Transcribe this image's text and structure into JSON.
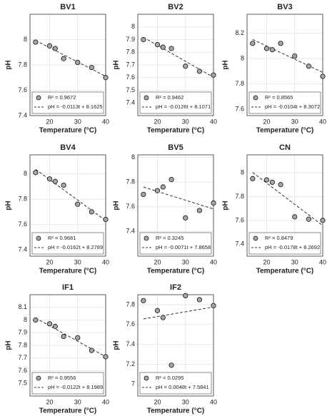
{
  "chart_data": [
    {
      "type": "scatter",
      "title": "BV1",
      "x_label": "Temperature (°C)",
      "y_label": "pH",
      "x": [
        15,
        20,
        22,
        25,
        30,
        35,
        40
      ],
      "series": [
        {
          "name": "R² = 0.9672",
          "color": "#a6a6a6",
          "values": [
            7.98,
            7.95,
            7.93,
            7.85,
            7.82,
            7.78,
            7.7
          ]
        }
      ],
      "fit": {
        "name": "pH = -0.0113t + 8.1625",
        "slope": -0.0113,
        "intercept": 8.1625
      },
      "xlim": [
        13,
        40
      ],
      "xticks": [
        20,
        30,
        40
      ],
      "ylim": [
        7.4,
        8.2
      ],
      "yticks": [
        7.4,
        7.6,
        7.8,
        8
      ],
      "grid": true,
      "legend": "lower left"
    },
    {
      "type": "scatter",
      "title": "BV2",
      "x_label": "Temperature (°C)",
      "y_label": "pH",
      "x": [
        15,
        20,
        22,
        25,
        30,
        35,
        40
      ],
      "series": [
        {
          "name": "R² = 0.9462",
          "color": "#a6a6a6",
          "values": [
            7.9,
            7.86,
            7.84,
            7.83,
            7.69,
            7.65,
            7.62
          ]
        }
      ],
      "fit": {
        "name": "pH = -0.0126t + 8.1071",
        "slope": -0.0126,
        "intercept": 8.1071
      },
      "xlim": [
        13,
        40
      ],
      "xticks": [
        20,
        30,
        40
      ],
      "ylim": [
        7.3,
        8.1
      ],
      "yticks": [
        7.4,
        7.5,
        7.6,
        7.7,
        7.8,
        7.9,
        8
      ],
      "grid": true,
      "legend": "lower left"
    },
    {
      "type": "scatter",
      "title": "BV3",
      "x_label": "Temperature (°C)",
      "y_label": "pH",
      "x": [
        15,
        20,
        22,
        25,
        30,
        35,
        40
      ],
      "series": [
        {
          "name": "R² = 0.8565",
          "color": "#a6a6a6",
          "values": [
            8.12,
            8.08,
            8.07,
            8.12,
            8.02,
            7.94,
            7.86
          ]
        }
      ],
      "fit": {
        "name": "pH = -0.0104t + 8.3072",
        "slope": -0.0104,
        "intercept": 8.3072
      },
      "xlim": [
        13,
        40
      ],
      "xticks": [
        20,
        30,
        40
      ],
      "ylim": [
        7.55,
        8.35
      ],
      "yticks": [
        7.6,
        7.8,
        8,
        8.2
      ],
      "grid": true,
      "legend": "lower left"
    },
    {
      "type": "scatter",
      "title": "BV4",
      "x_label": "Temperature (°C)",
      "y_label": "pH",
      "x": [
        15,
        20,
        22,
        25,
        30,
        35,
        40
      ],
      "series": [
        {
          "name": "R² = 0.9681",
          "color": "#a6a6a6",
          "values": [
            8.01,
            7.96,
            7.94,
            7.91,
            7.76,
            7.7,
            7.64
          ]
        }
      ],
      "fit": {
        "name": "pH = -0.0162t + 8.2789",
        "slope": -0.0162,
        "intercept": 8.2789
      },
      "xlim": [
        13,
        40
      ],
      "xticks": [
        20,
        30,
        40
      ],
      "ylim": [
        7.35,
        8.15
      ],
      "yticks": [
        7.4,
        7.6,
        7.8,
        8
      ],
      "grid": true,
      "legend": "lower left"
    },
    {
      "type": "scatter",
      "title": "BV5",
      "x_label": "Temperature (°C)",
      "y_label": "pH",
      "x": [
        15,
        20,
        22,
        25,
        30,
        35,
        40
      ],
      "series": [
        {
          "name": "R² = 0.3245",
          "color": "#a6a6a6",
          "values": [
            7.7,
            7.73,
            7.76,
            7.82,
            7.51,
            7.57,
            7.63
          ]
        }
      ],
      "fit": {
        "name": "pH = -0.0071t + 7.8658",
        "slope": -0.0071,
        "intercept": 7.8658
      },
      "xlim": [
        13,
        40
      ],
      "xticks": [
        20,
        30,
        40
      ],
      "ylim": [
        7.2,
        8.02
      ],
      "yticks": [
        7.4,
        7.6,
        7.8,
        8
      ],
      "grid": true,
      "legend": "lower left"
    },
    {
      "type": "scatter",
      "title": "CN",
      "x_label": "Temperature (°C)",
      "y_label": "pH",
      "x": [
        15,
        20,
        22,
        25,
        30,
        35,
        40
      ],
      "series": [
        {
          "name": "R² = 0.8479",
          "color": "#a6a6a6",
          "values": [
            7.95,
            7.94,
            7.92,
            7.9,
            7.63,
            7.61,
            7.6
          ]
        }
      ],
      "fit": {
        "name": "pH = -0.0178t + 8.2692",
        "slope": -0.0178,
        "intercept": 8.2692
      },
      "xlim": [
        13,
        40
      ],
      "xticks": [
        20,
        30,
        40
      ],
      "ylim": [
        7.3,
        8.15
      ],
      "yticks": [
        7.4,
        7.6,
        7.8,
        8
      ],
      "grid": true,
      "legend": "lower left"
    },
    {
      "type": "scatter",
      "title": "IF1",
      "x_label": "Temperature (°C)",
      "y_label": "pH",
      "x": [
        15,
        20,
        22,
        25,
        30,
        35,
        40
      ],
      "series": [
        {
          "name": "R² = 0.9556",
          "color": "#a6a6a6",
          "values": [
            8.0,
            7.97,
            7.95,
            7.87,
            7.86,
            7.76,
            7.71
          ]
        }
      ],
      "fit": {
        "name": "pH = -0.0122t + 8.1989",
        "slope": -0.0122,
        "intercept": 8.1989
      },
      "xlim": [
        13,
        40
      ],
      "xticks": [
        20,
        30,
        40
      ],
      "ylim": [
        7.4,
        8.2
      ],
      "yticks": [
        7.5,
        7.6,
        7.7,
        7.8,
        7.9,
        8,
        8.1
      ],
      "grid": true,
      "legend": "lower left"
    },
    {
      "type": "scatter",
      "title": "IF2",
      "x_label": "Temperature (°C)",
      "y_label": "pH",
      "x": [
        15,
        20,
        22,
        25,
        30,
        35,
        40
      ],
      "series": [
        {
          "name": "R² = 0.0295",
          "color": "#a6a6a6",
          "values": [
            7.84,
            7.74,
            7.67,
            7.19,
            7.89,
            7.85,
            7.79
          ]
        }
      ],
      "fit": {
        "name": "pH = 0.0048t + 7.5841",
        "slope": 0.0048,
        "intercept": 7.5841
      },
      "xlim": [
        13,
        40
      ],
      "xticks": [
        20,
        30,
        40
      ],
      "ylim": [
        6.88,
        7.9
      ],
      "yticks": [
        7,
        7.2,
        7.4,
        7.6,
        7.8
      ],
      "grid": true,
      "legend": "lower left"
    }
  ]
}
